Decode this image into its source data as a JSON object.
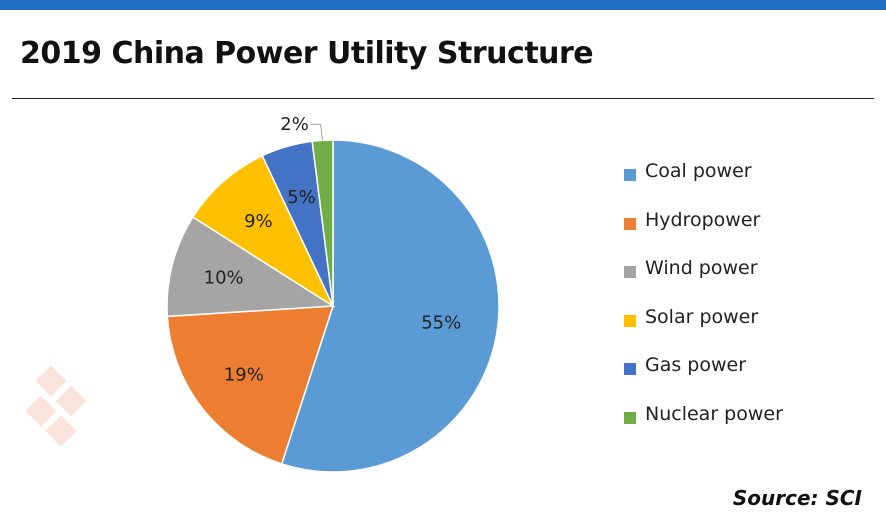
{
  "title": "2019 China Power Utility Structure",
  "source": "Source: SCI",
  "colors": {
    "header_bar": "#1f6fc5",
    "coal": "#5b9bd5",
    "hydro": "#ed7d31",
    "wind": "#a5a5a5",
    "solar": "#ffc000",
    "gas": "#4472c4",
    "nuclear": "#70ad47"
  },
  "legend": [
    {
      "label": "Coal power",
      "color": "#5b9bd5"
    },
    {
      "label": "Hydropower",
      "color": "#ed7d31"
    },
    {
      "label": "Wind power",
      "color": "#a5a5a5"
    },
    {
      "label": "Solar power",
      "color": "#ffc000"
    },
    {
      "label": "Gas power",
      "color": "#4472c4"
    },
    {
      "label": "Nuclear power",
      "color": "#70ad47"
    }
  ],
  "chart_data": {
    "type": "pie",
    "title": "2019 China Power Utility Structure",
    "legend_position": "right",
    "slices": [
      {
        "label": "Coal power",
        "value": 55,
        "display": "55%",
        "color": "#5b9bd5"
      },
      {
        "label": "Hydropower",
        "value": 19,
        "display": "19%",
        "color": "#ed7d31"
      },
      {
        "label": "Wind power",
        "value": 10,
        "display": "10%",
        "color": "#a5a5a5"
      },
      {
        "label": "Solar power",
        "value": 9,
        "display": "9%",
        "color": "#ffc000"
      },
      {
        "label": "Gas power",
        "value": 5,
        "display": "5%",
        "color": "#4472c4"
      },
      {
        "label": "Nuclear power",
        "value": 2,
        "display": "2%",
        "color": "#70ad47"
      }
    ]
  }
}
